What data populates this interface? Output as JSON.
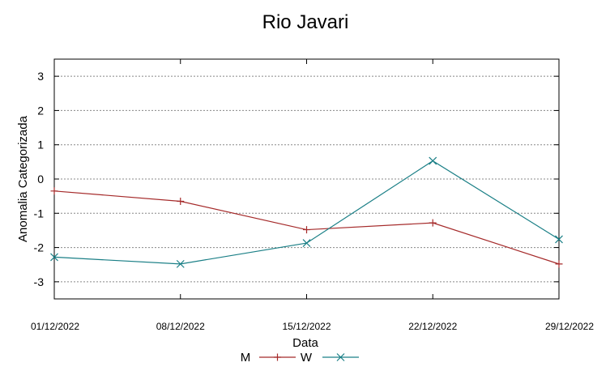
{
  "chart_data": {
    "type": "line",
    "title": "Rio Javari",
    "xlabel": "Data",
    "ylabel": "Anomalia Categorizada",
    "categories": [
      "01/12/2022",
      "08/12/2022",
      "15/12/2022",
      "22/12/2022",
      "29/12/2022"
    ],
    "ylim": [
      -3.5,
      3.5
    ],
    "yticks": [
      3,
      2,
      1,
      0,
      -1,
      -2,
      -3
    ],
    "grid": true,
    "legend_position": "bottom",
    "series": [
      {
        "name": "M",
        "color": "#a52a2a",
        "marker": "plus",
        "values": [
          -0.35,
          -0.65,
          -1.48,
          -1.28,
          -2.48
        ]
      },
      {
        "name": "W",
        "color": "#1a7f86",
        "marker": "cross",
        "values": [
          -2.28,
          -2.48,
          -1.87,
          0.53,
          -1.76
        ]
      }
    ]
  }
}
